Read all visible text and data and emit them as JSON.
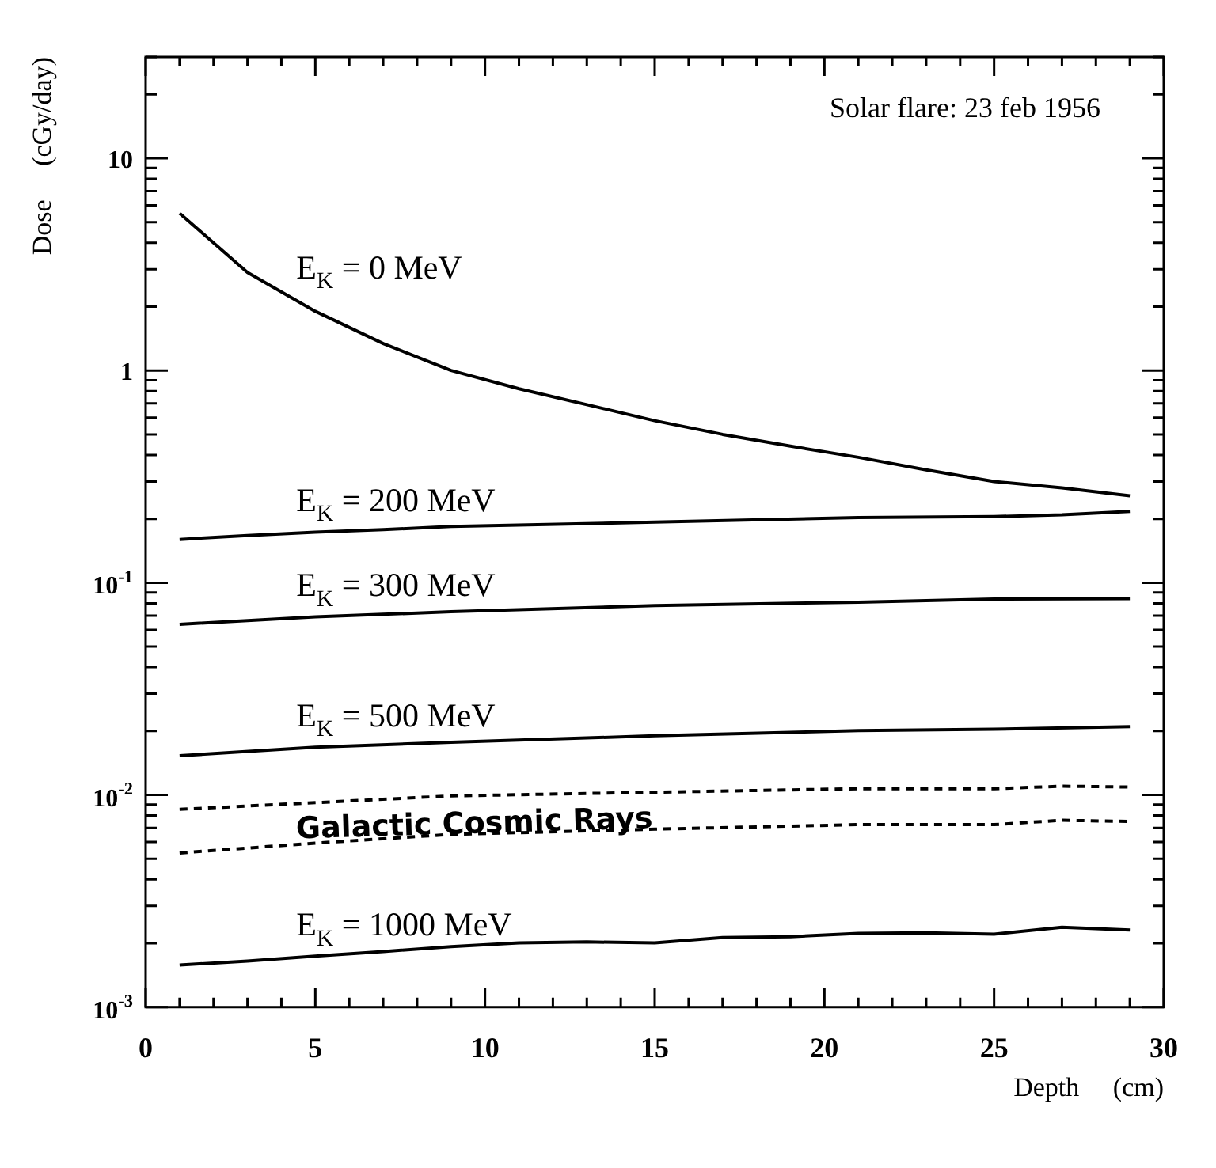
{
  "chart_data": {
    "type": "line",
    "xlabel": "Depth     (cm)",
    "ylabel": "Dose     (cGy/day)",
    "annotations": [
      "Solar flare: 23 feb 1956"
    ],
    "log": "y",
    "grid": false,
    "legend": false,
    "marker": "none",
    "xlim": [
      0,
      30
    ],
    "xticks": [
      0,
      5,
      10,
      15,
      20,
      25,
      30
    ],
    "ylim": [
      0.001,
      30
    ],
    "yticks": [
      {
        "value": 0.001,
        "label": "10$^{-3}$"
      },
      {
        "value": 0.01,
        "label": "10$^{-2}$"
      },
      {
        "value": 0.1,
        "label": "10$^{-1}$"
      },
      1,
      10
    ],
    "series": [
      {
        "name": "E$_{K}$ = 0 MeV",
        "color": "#000000",
        "line_style": "solid",
        "x": [
          1,
          3,
          5,
          7,
          9,
          11,
          13,
          15,
          17,
          19,
          21,
          23,
          25,
          27,
          29
        ],
        "values": [
          5.5,
          2.9,
          1.9,
          1.34,
          1.0,
          0.82,
          0.69,
          0.58,
          0.5,
          0.44,
          0.39,
          0.34,
          0.3,
          0.28,
          0.257
        ]
      },
      {
        "name": "E$_{K}$ = 200 MeV",
        "color": "#000000",
        "line_style": "solid",
        "x": [
          1,
          3,
          5,
          7,
          9,
          15,
          21,
          25,
          27,
          29
        ],
        "values": [
          0.16,
          0.167,
          0.173,
          0.178,
          0.184,
          0.193,
          0.203,
          0.205,
          0.209,
          0.217
        ]
      },
      {
        "name": "E$_{K}$ = 300 MeV",
        "color": "#000000",
        "line_style": "solid",
        "x": [
          1,
          5,
          9,
          15,
          21,
          25,
          29
        ],
        "values": [
          0.0637,
          0.069,
          0.073,
          0.078,
          0.081,
          0.0837,
          0.0842
        ]
      },
      {
        "name": "E$_{K}$ = 500 MeV",
        "color": "#000000",
        "line_style": "solid",
        "x": [
          1,
          5,
          9,
          15,
          21,
          25,
          29
        ],
        "values": [
          0.0153,
          0.0168,
          0.0177,
          0.019,
          0.0201,
          0.0204,
          0.021
        ]
      },
      {
        "name": "Galactic Cosmic Rays",
        "color": "#000000",
        "line_style": "dashed",
        "x": [
          1,
          5,
          9,
          15,
          21,
          25,
          27,
          29
        ],
        "values": [
          0.00855,
          0.0092,
          0.0099,
          0.0103,
          0.0107,
          0.0107,
          0.011,
          0.0109
        ]
      },
      {
        "color": "#000000",
        "line_style": "dashed",
        "x": [
          1,
          5,
          9,
          15,
          21,
          25,
          27,
          29
        ],
        "values": [
          0.00533,
          0.00593,
          0.00652,
          0.0069,
          0.00725,
          0.00725,
          0.0076,
          0.0075
        ]
      },
      {
        "name": "E$_{K}$ = 1000 MeV",
        "color": "#000000",
        "line_style": "solid",
        "x": [
          1,
          3,
          5,
          7,
          9,
          11,
          13,
          15,
          17,
          19,
          21,
          23,
          25,
          27,
          29
        ],
        "values": [
          0.00158,
          0.00165,
          0.00174,
          0.00183,
          0.00193,
          0.00201,
          0.00203,
          0.00201,
          0.00213,
          0.00215,
          0.00223,
          0.00224,
          0.00221,
          0.00238,
          0.00231
        ]
      }
    ]
  }
}
